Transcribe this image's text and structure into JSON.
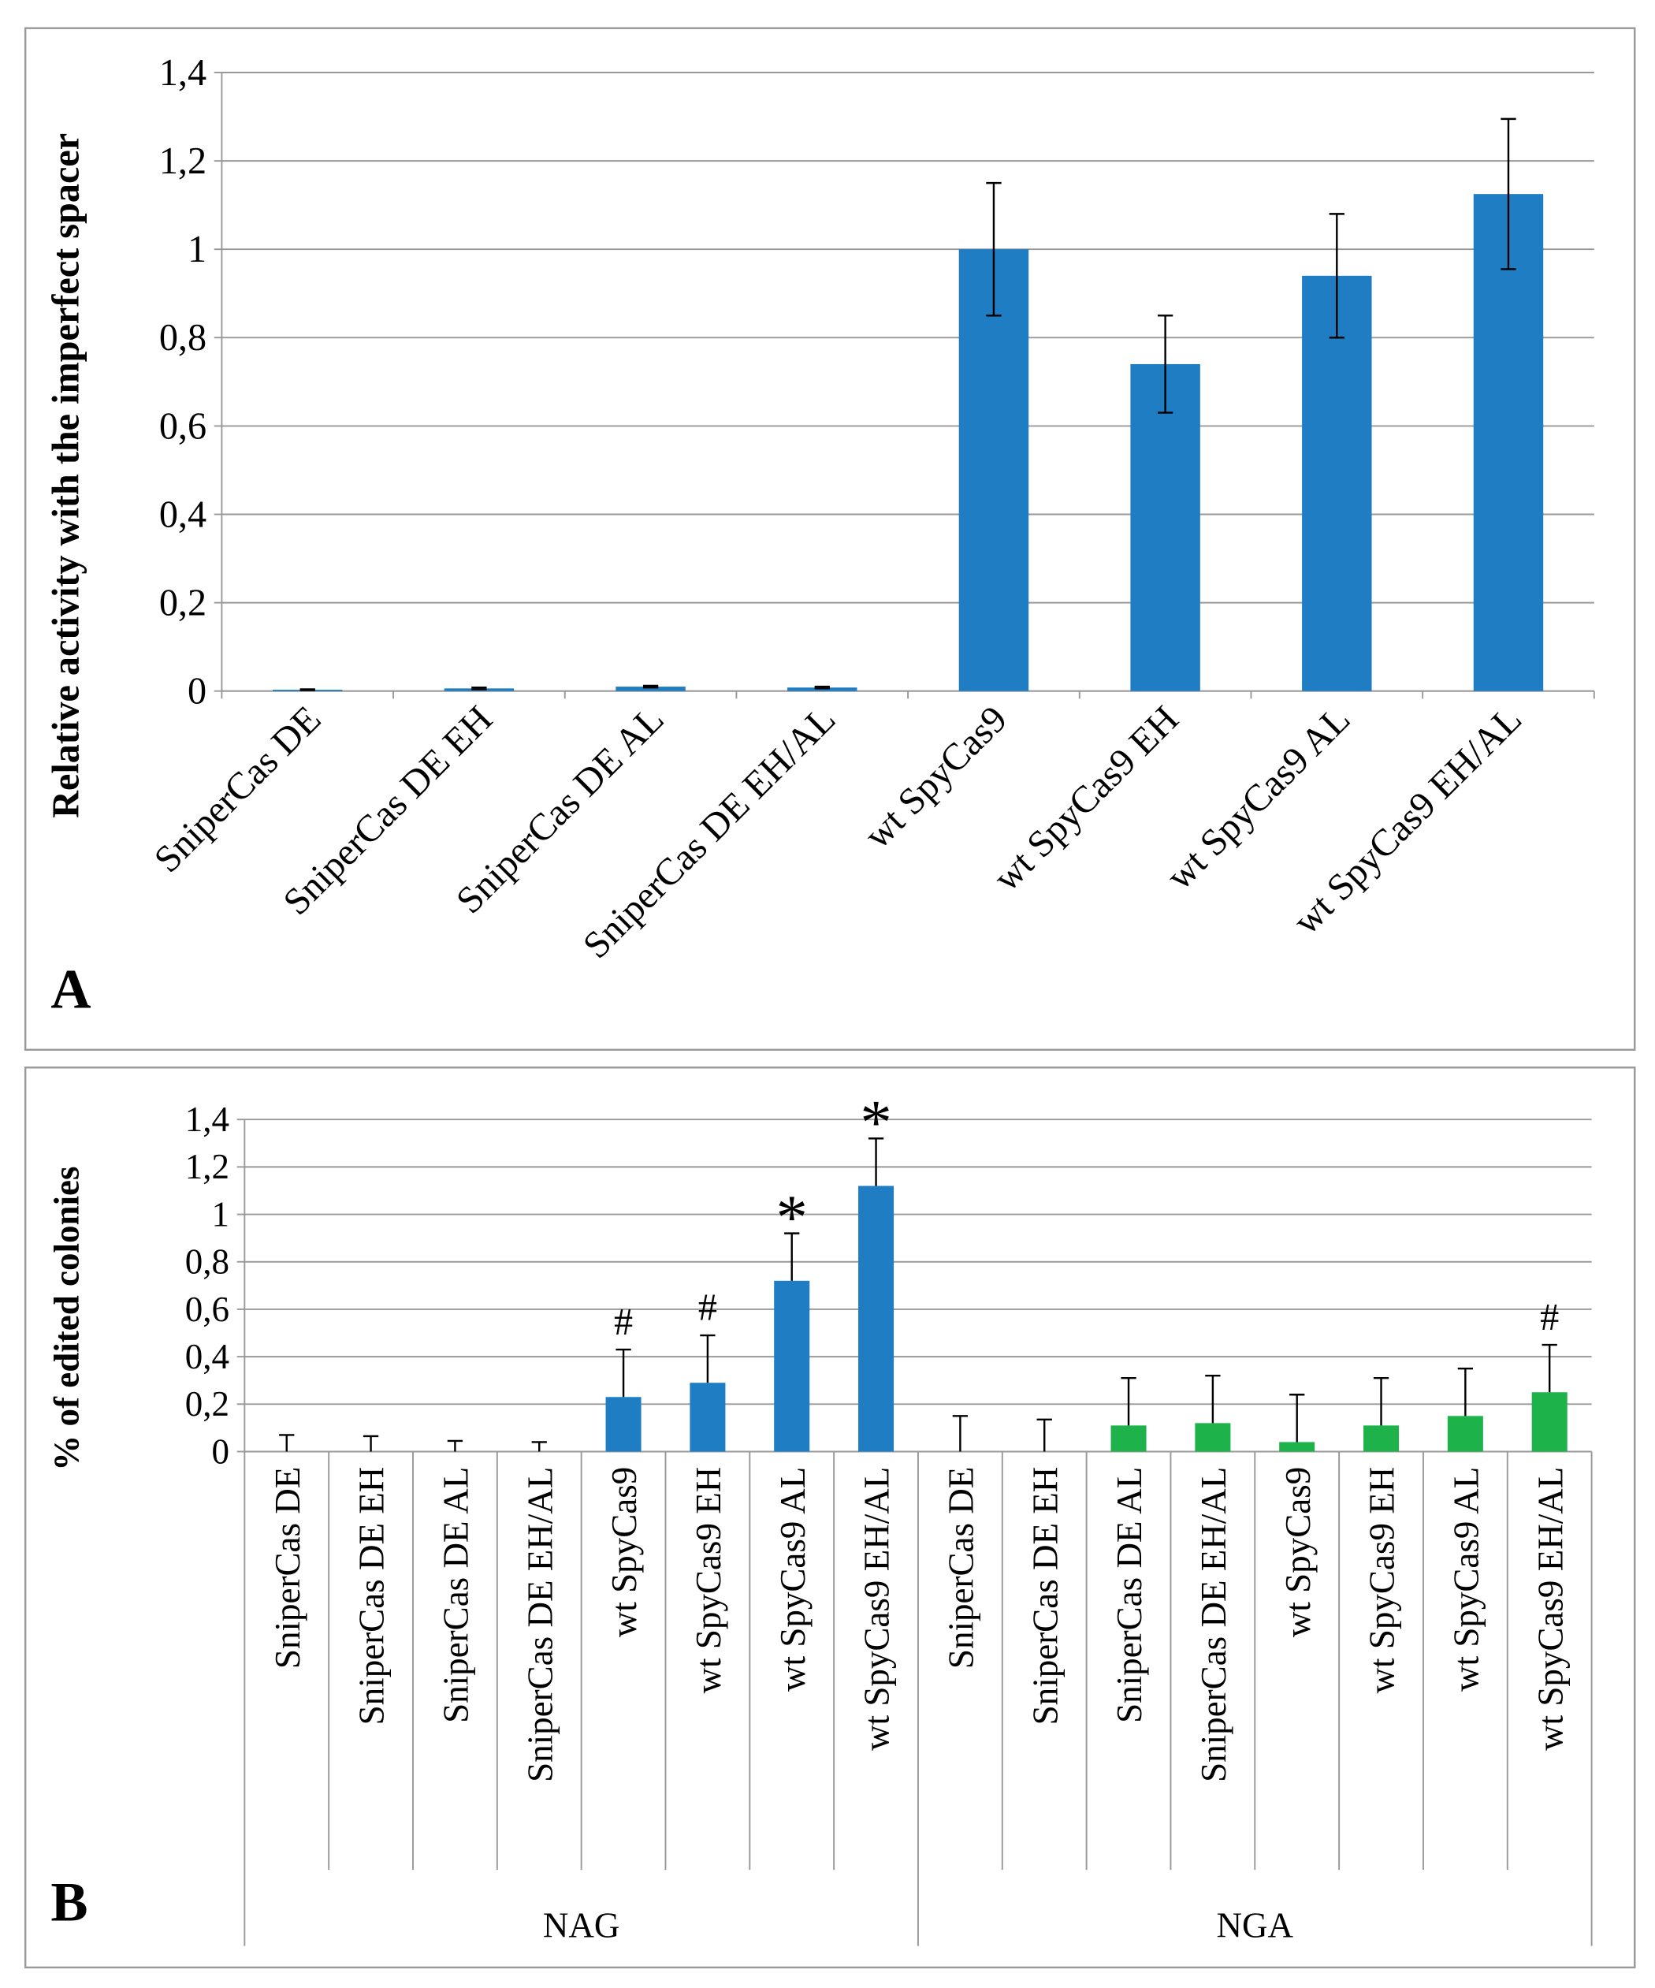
{
  "chart_data": [
    {
      "type": "bar",
      "panel_label": "A",
      "ylabel": "Relative activity with the imperfect spacer",
      "categories": [
        "SniperCas DE",
        "SniperCas DE EH",
        "SniperCas DE AL",
        "SniperCas DE EH/AL",
        "wt SpyCas9",
        "wt SpyCas9 EH",
        "wt SpyCas9 AL",
        "wt SpyCas9 EH/AL"
      ],
      "values": [
        0.003,
        0.006,
        0.01,
        0.008,
        1.0,
        0.74,
        0.94,
        1.125
      ],
      "errors": [
        0.001,
        0.002,
        0.002,
        0.002,
        0.15,
        0.11,
        0.14,
        0.17
      ],
      "error_bars": "both",
      "color": "#1f7dc4",
      "ylim": [
        0,
        1.4
      ],
      "yticks": [
        0,
        {
          "value": 0.2,
          "label": "0,2"
        },
        {
          "value": 0.4,
          "label": "0,4"
        },
        {
          "value": 0.6,
          "label": "0,6"
        },
        {
          "value": 0.8,
          "label": "0,8"
        },
        1,
        {
          "value": 1.2,
          "label": "1,2"
        },
        {
          "value": 1.4,
          "label": "1,4"
        }
      ],
      "grid": true
    },
    {
      "type": "bar",
      "panel_label": "B",
      "ylabel": "% of edited colonies",
      "categories": [
        "SniperCas DE",
        "SniperCas DE EH",
        "SniperCas DE AL",
        "SniperCas DE EH/AL",
        "wt SpyCas9",
        "wt SpyCas9 EH",
        "wt SpyCas9 AL",
        "wt SpyCas9 EH/AL",
        "SniperCas DE",
        "SniperCas DE EH",
        "SniperCas DE AL",
        "SniperCas DE EH/AL",
        "wt SpyCas9",
        "wt SpyCas9 EH",
        "wt SpyCas9 AL",
        "wt SpyCas9 EH/AL"
      ],
      "groups": [
        "NAG",
        "NGA"
      ],
      "values": [
        0,
        0,
        0,
        0,
        0.23,
        0.29,
        0.72,
        1.12,
        0,
        0,
        0.11,
        0.12,
        0.04,
        0.11,
        0.15,
        0.25
      ],
      "errors": [
        0.07,
        0.065,
        0.045,
        0.04,
        0.2,
        0.2,
        0.2,
        0.2,
        0.15,
        0.135,
        0.2,
        0.2,
        0.2,
        0.2,
        0.2,
        0.2
      ],
      "error_bars": "plus",
      "annotations": [
        null,
        null,
        null,
        null,
        "#",
        "#",
        "*",
        "*",
        null,
        null,
        null,
        null,
        null,
        null,
        null,
        "#"
      ],
      "colors": [
        "#1f7dc4",
        "#1f7dc4",
        "#1f7dc4",
        "#1f7dc4",
        "#1f7dc4",
        "#1f7dc4",
        "#1f7dc4",
        "#1f7dc4",
        "#1db34a",
        "#1db34a",
        "#1db34a",
        "#1db34a",
        "#1db34a",
        "#1db34a",
        "#1db34a",
        "#1db34a"
      ],
      "ylim": [
        0,
        1.4
      ],
      "yticks": [
        0,
        {
          "value": 0.2,
          "label": "0,2"
        },
        {
          "value": 0.4,
          "label": "0,4"
        },
        {
          "value": 0.6,
          "label": "0,6"
        },
        {
          "value": 0.8,
          "label": "0,8"
        },
        1,
        {
          "value": 1.2,
          "label": "1,2"
        },
        {
          "value": 1.4,
          "label": "1,4"
        }
      ],
      "grid": true
    }
  ]
}
